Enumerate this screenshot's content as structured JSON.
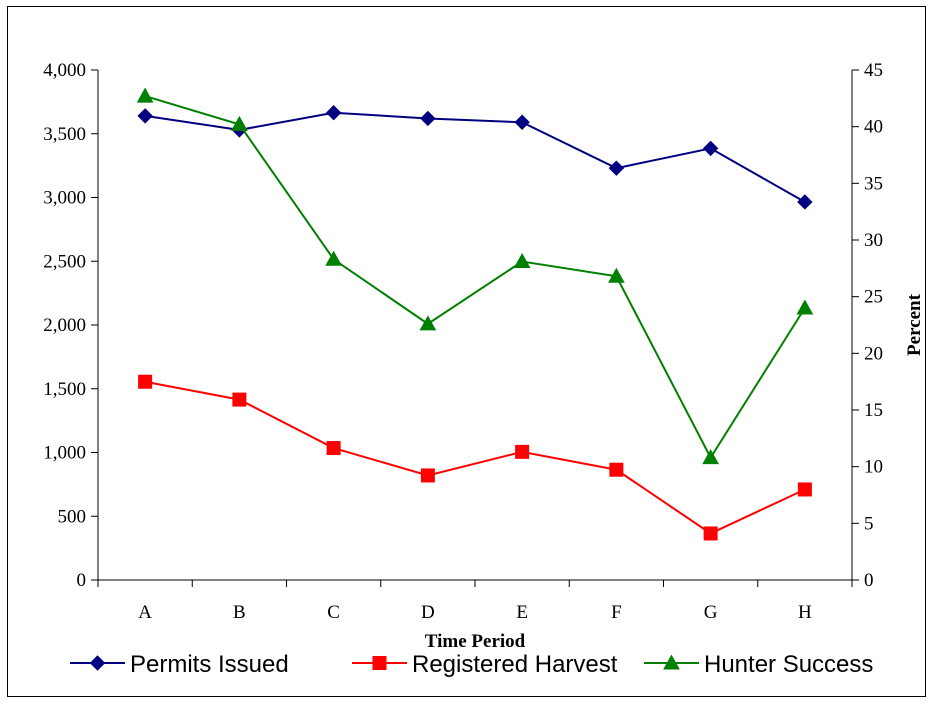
{
  "chart_data": {
    "type": "line",
    "categories": [
      "A",
      "B",
      "C",
      "D",
      "E",
      "F",
      "G",
      "H"
    ],
    "xlabel": "Time Period",
    "ylabel_left": "",
    "ylabel_right": "Percent",
    "ylim_left": [
      0,
      4000
    ],
    "yticks_left": [
      "0",
      "500",
      "1,000",
      "1,500",
      "2,000",
      "2,500",
      "3,000",
      "3,500",
      "4,000"
    ],
    "ylim_right": [
      0,
      45
    ],
    "yticks_right": [
      "0",
      "5",
      "10",
      "15",
      "20",
      "25",
      "30",
      "35",
      "40",
      "45"
    ],
    "grid": false,
    "legend_position": "bottom",
    "series": [
      {
        "name": "Permits Issued",
        "axis": "left",
        "color": "#000080",
        "marker": "diamond",
        "values": [
          3640,
          3530,
          3665,
          3620,
          3590,
          3230,
          3385,
          2965
        ]
      },
      {
        "name": "Registered Harvest",
        "axis": "left",
        "color": "#ff0000",
        "marker": "square",
        "values": [
          1555,
          1415,
          1035,
          820,
          1005,
          865,
          365,
          710
        ]
      },
      {
        "name": "Hunter Success",
        "axis": "right",
        "color": "#008000",
        "marker": "triangle",
        "values": [
          42.7,
          40.2,
          28.3,
          22.6,
          28.1,
          26.8,
          10.8,
          24.0
        ]
      }
    ]
  }
}
